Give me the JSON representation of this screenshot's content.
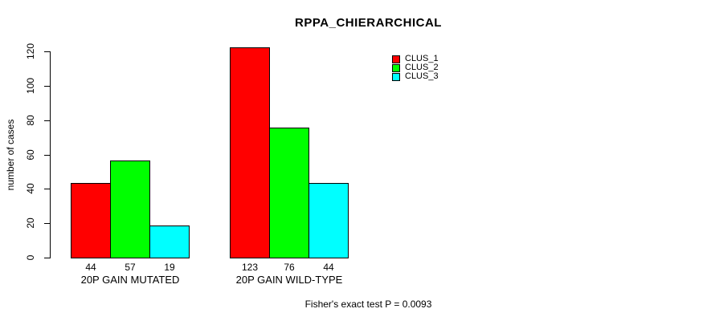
{
  "footer": "Fisher's exact test P = 0.0093",
  "chart_data": {
    "type": "bar",
    "grouped": true,
    "title": "RPPA_CHIERARCHICAL",
    "xlabel": "",
    "ylabel": "number of cases",
    "categories": [
      "20P GAIN MUTATED",
      "20P GAIN WILD-TYPE"
    ],
    "series": [
      {
        "name": "CLUS_1",
        "color": "#ff0000",
        "values": [
          44,
          123
        ]
      },
      {
        "name": "CLUS_2",
        "color": "#00ff00",
        "values": [
          57,
          76
        ]
      },
      {
        "name": "CLUS_3",
        "color": "#00ffff",
        "values": [
          19,
          44
        ]
      }
    ],
    "bar_value_labels": true,
    "ylim": [
      0,
      130
    ],
    "yticks": [
      0,
      20,
      40,
      60,
      80,
      100,
      120
    ],
    "grid": false,
    "legend_position": "top-right-inside",
    "background": "#ffffff",
    "bar_border_color": "#000000"
  }
}
